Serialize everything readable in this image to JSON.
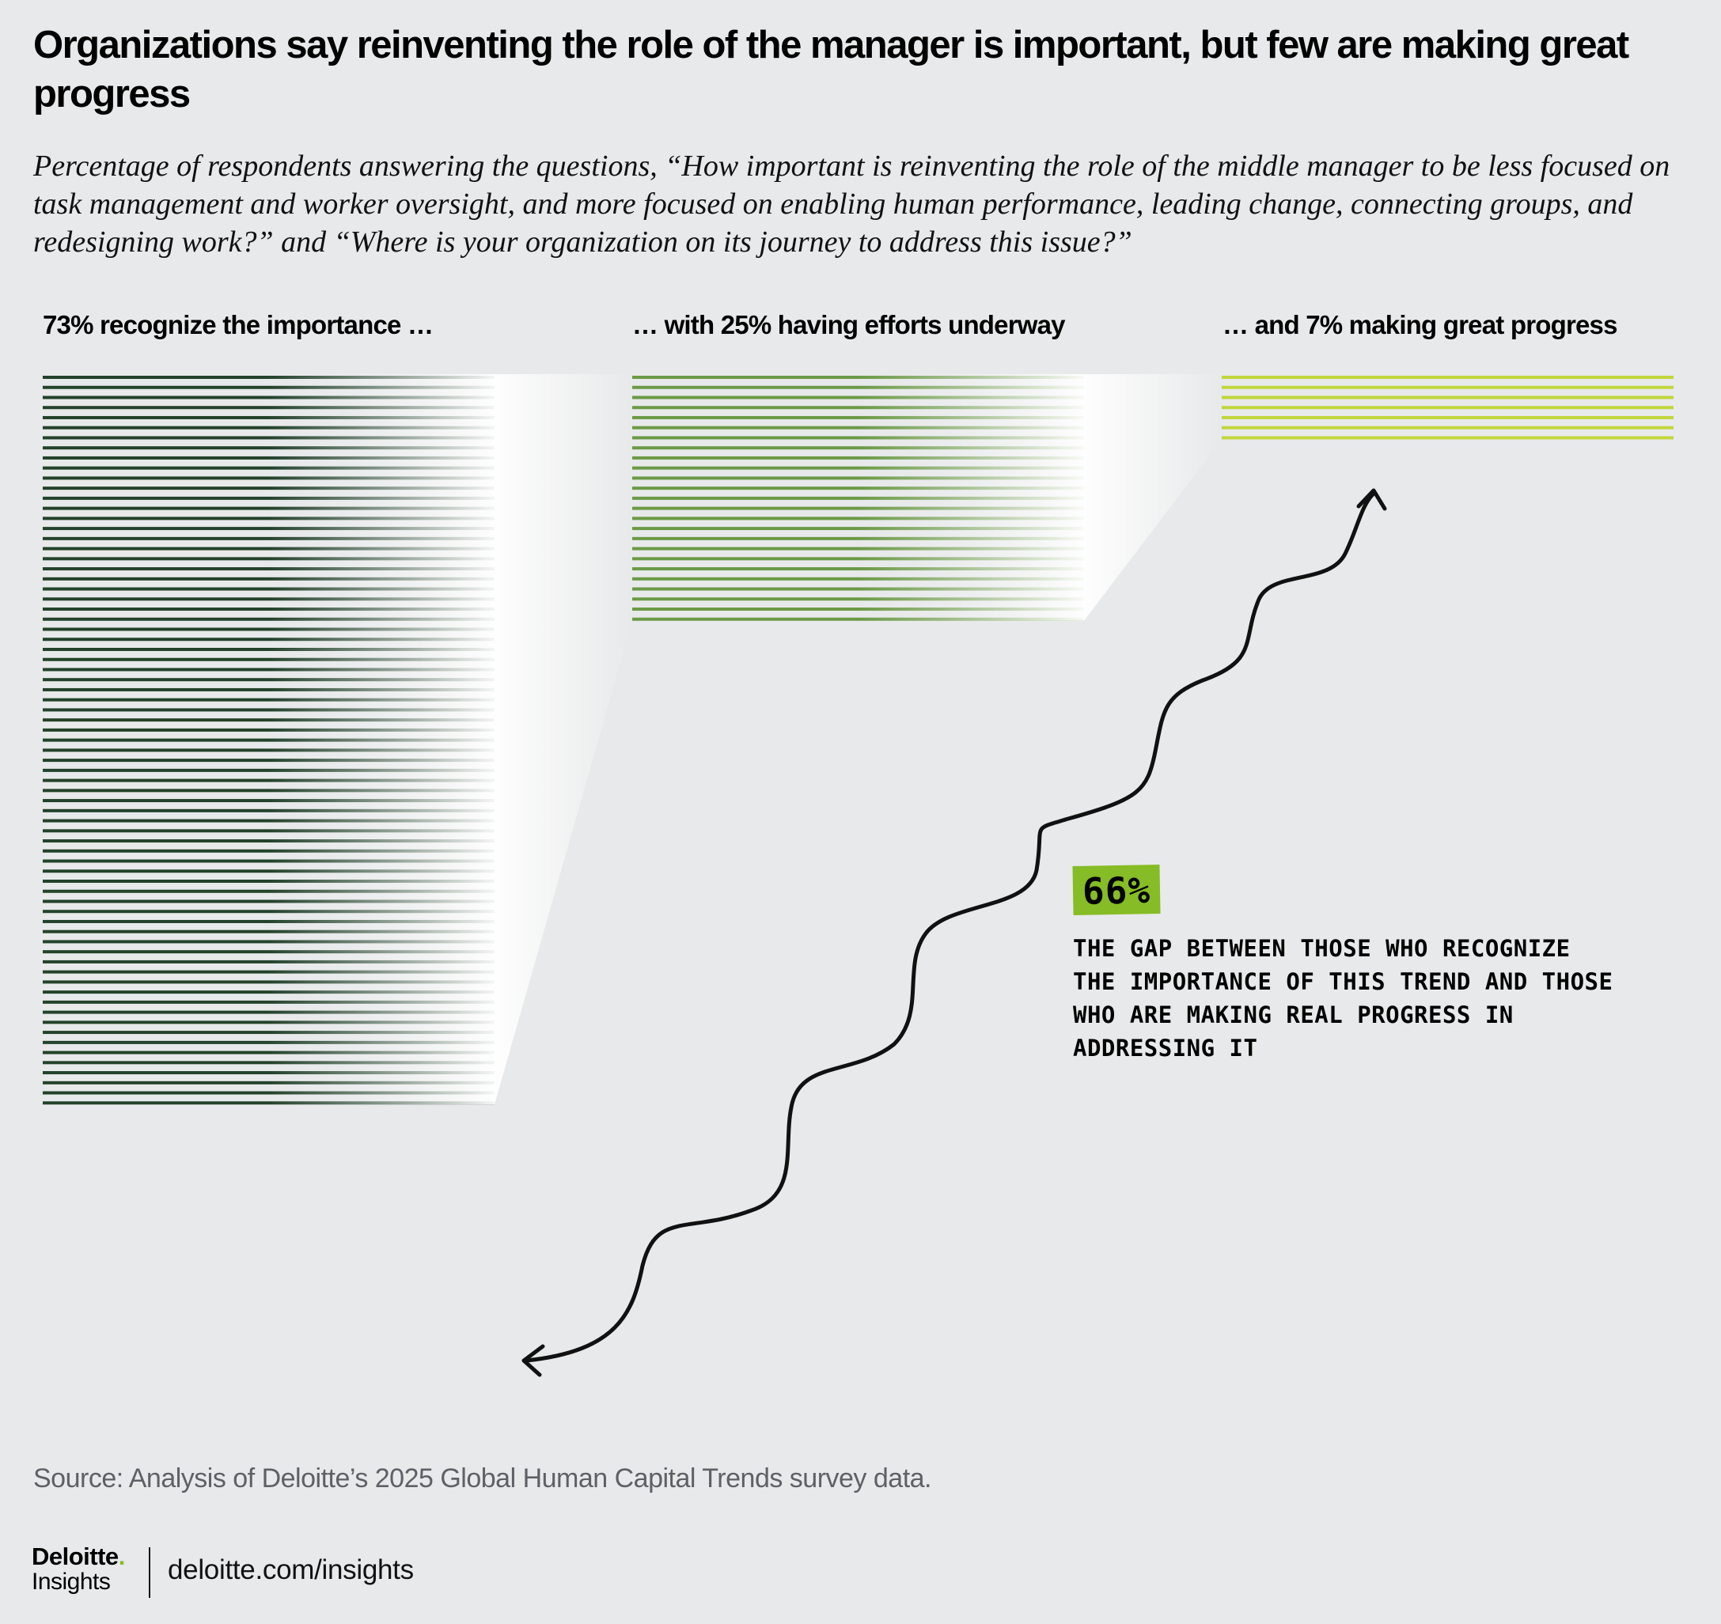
{
  "title": "Organizations say reinventing the role of the manager is important, but few are making great progress",
  "subtitle": "Percentage of respondents answering the questions, “How important is reinventing the role of the middle manager to be less focused on task management and worker oversight, and more focused on enabling human performance, leading change, connecting groups, and redesigning work?” and “Where is your organization on its journey to address this issue?”",
  "chart_data": {
    "type": "bar",
    "encoding": "stacked horizontal lines, one line per percentage point",
    "series": [
      {
        "name": "73% recognize the importance …",
        "value": 73,
        "color": "#23422b"
      },
      {
        "name": "… with 25% having efforts underway",
        "value": 25,
        "color": "#6b9a46"
      },
      {
        "name": "… and 7% making great progress",
        "value": 7,
        "color": "#c1d63b"
      }
    ],
    "annotation": {
      "value": "66%",
      "text": "The gap between those who recognize the importance of this trend and those who are making real progress in addressing it"
    }
  },
  "colors": {
    "background": "#e8e9ea",
    "accent": "#86bc25"
  },
  "footer": {
    "source": "Source: Analysis of Deloitte’s 2025 Global Human Capital Trends survey data.",
    "brand_name": "Deloitte",
    "brand_dot": ".",
    "brand_sub": "Insights",
    "url": "deloitte.com/insights"
  }
}
